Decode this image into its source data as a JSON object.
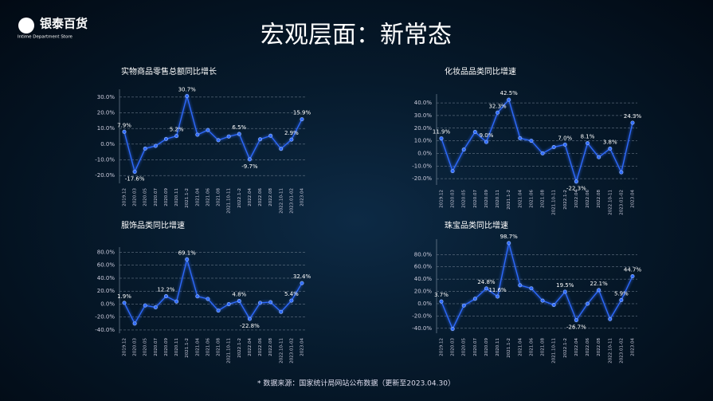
{
  "logo": {
    "name": "银泰百货",
    "subtitle": "Intime Department Store"
  },
  "title": "宏观层面：新常态",
  "footnote": "* 数据来源：国家统计局网站公布数据（更新至2023.04.30）",
  "chart_data": [
    {
      "type": "line",
      "title": "实物商品零售总额同比增长",
      "color": "#2f6bff",
      "categories": [
        "2019.12",
        "2020.03",
        "2020.05",
        "2020.07",
        "2020.09",
        "2020.11",
        "2021.1-2",
        "2021.04",
        "2021.06",
        "2021.08",
        "2021.10-11",
        "2022.1-2",
        "2022.04",
        "2022.06",
        "2022.08",
        "2022.10-11",
        "2023.01-02",
        "2023.04"
      ],
      "series": [
        {
          "name": "实物商品零售总额同比增长",
          "color": "#2f6bff",
          "values": [
            7.9,
            -17.6,
            -2.8,
            -1.1,
            3.3,
            5.2,
            30.7,
            6.0,
            9.0,
            2.5,
            4.9,
            6.5,
            -9.7,
            3.1,
            5.4,
            -3.0,
            2.9,
            15.9
          ],
          "value_labels": [
            "7.9%",
            "-17.6%",
            null,
            null,
            null,
            "5.2%",
            "30.7%",
            null,
            null,
            null,
            null,
            "6.5%",
            "-9.7%",
            null,
            null,
            null,
            "2.9%",
            "15.9%"
          ]
        }
      ],
      "ylim": [
        -25,
        35
      ],
      "yticks": [
        {
          "value": 30,
          "label": "30.0%"
        },
        {
          "value": 20,
          "label": "20.0%"
        },
        {
          "value": 10,
          "label": "10.0%"
        },
        {
          "value": 0,
          "label": "0.0%"
        },
        {
          "value": -10,
          "label": "-10.0%"
        },
        {
          "value": -20,
          "label": "-20.0%"
        }
      ],
      "grid": true
    },
    {
      "type": "line",
      "title": "化妆品品类同比增速",
      "color": "#2f6bff",
      "categories": [
        "2019.12",
        "2020.03",
        "2020.05",
        "2020.07",
        "2020.09",
        "2020.11",
        "2021.1-2",
        "2021.04",
        "2021.06",
        "2021.08",
        "2021.10-11",
        "2022.1-2",
        "2022.04",
        "2022.06",
        "2022.08",
        "2022.10-11",
        "2023.01-02",
        "2023.04"
      ],
      "series": [
        {
          "name": "化妆品品类同比增速",
          "color": "#2f6bff",
          "values": [
            11.9,
            -14,
            3,
            17,
            9.0,
            32.3,
            42.5,
            12,
            10,
            0,
            5,
            7.0,
            -22.3,
            8.1,
            -3,
            3.8,
            -15,
            24.3
          ],
          "value_labels": [
            "11.9%",
            null,
            null,
            null,
            "9.0%",
            "32.3%",
            "42.5%",
            null,
            null,
            null,
            null,
            "7.0%",
            "-22.3%",
            "8.1%",
            null,
            "3.8%",
            null,
            "24.3%"
          ]
        }
      ],
      "ylim": [
        -25,
        47
      ],
      "yticks": [
        {
          "value": 40,
          "label": "40.0%"
        },
        {
          "value": 30,
          "label": "30.0%"
        },
        {
          "value": 20,
          "label": "20.0%"
        },
        {
          "value": 10,
          "label": "10.0%"
        },
        {
          "value": 0,
          "label": "0.0%"
        },
        {
          "value": -10,
          "label": "-10.0%"
        },
        {
          "value": -20,
          "label": "-20.0%"
        }
      ],
      "grid": true
    },
    {
      "type": "line",
      "title": "服饰品类同比增速",
      "color": "#2f6bff",
      "categories": [
        "2019.12",
        "2020.03",
        "2020.05",
        "2020.07",
        "2020.09",
        "2020.11",
        "2021.1-2",
        "2021.04",
        "2021.06",
        "2021.08",
        "2021.10-11",
        "2022.1-2",
        "2022.04",
        "2022.06",
        "2022.08",
        "2022.10-11",
        "2023.01-02",
        "2023.04"
      ],
      "series": [
        {
          "name": "服饰品类同比增速",
          "color": "#2f6bff",
          "values": [
            1.9,
            -30,
            -2,
            -5,
            12.2,
            4,
            69.1,
            12,
            8,
            -10,
            0,
            4.8,
            -22.8,
            2,
            3,
            -12,
            5.4,
            32.4
          ],
          "value_labels": [
            "1.9%",
            null,
            null,
            null,
            "12.2%",
            null,
            "69.1%",
            null,
            null,
            null,
            null,
            "4.8%",
            "-22.8%",
            null,
            null,
            null,
            "5.4%",
            "32.4%"
          ]
        }
      ],
      "ylim": [
        -45,
        88
      ],
      "yticks": [
        {
          "value": 80,
          "label": "80.0%"
        },
        {
          "value": 60,
          "label": "60.0%"
        },
        {
          "value": 40,
          "label": "40.0%"
        },
        {
          "value": 20,
          "label": "20.0%"
        },
        {
          "value": 0,
          "label": "0.0%"
        },
        {
          "value": -20,
          "label": "-20.0%"
        },
        {
          "value": -40,
          "label": "-40.0%"
        }
      ],
      "grid": true
    },
    {
      "type": "line",
      "title": "珠宝品类同比增速",
      "color": "#2f6bff",
      "categories": [
        "2019.12",
        "2020.03",
        "2020.05",
        "2020.07",
        "2020.09",
        "2020.11",
        "2021.1-2",
        "2021.04",
        "2021.06",
        "2021.08",
        "2021.10-11",
        "2022.1-2",
        "2022.04",
        "2022.06",
        "2022.08",
        "2022.10-11",
        "2023.01-02",
        "2023.04"
      ],
      "series": [
        {
          "name": "珠宝品类同比增速",
          "color": "#2f6bff",
          "values": [
            3.7,
            -41,
            -3,
            8,
            24.8,
            11.6,
            98.7,
            30,
            25,
            5,
            -2,
            19.5,
            -26.7,
            0,
            22.1,
            -25,
            5.9,
            44.7
          ],
          "value_labels": [
            "3.7%",
            null,
            null,
            null,
            "24.8%",
            "11.6%",
            "98.7%",
            null,
            null,
            null,
            null,
            "19.5%",
            "-26.7%",
            null,
            "22.1%",
            null,
            "5.9%",
            "44.7%"
          ]
        }
      ],
      "ylim": [
        -48,
        105
      ],
      "yticks": [
        {
          "value": 80,
          "label": "80.0%"
        },
        {
          "value": 60,
          "label": "60.0%"
        },
        {
          "value": 40,
          "label": "40.0%"
        },
        {
          "value": 20,
          "label": "20.0%"
        },
        {
          "value": 0,
          "label": "0.0%"
        },
        {
          "value": -20,
          "label": "-20.0%"
        },
        {
          "value": -40,
          "label": "-40.0%"
        }
      ],
      "grid": true
    }
  ]
}
